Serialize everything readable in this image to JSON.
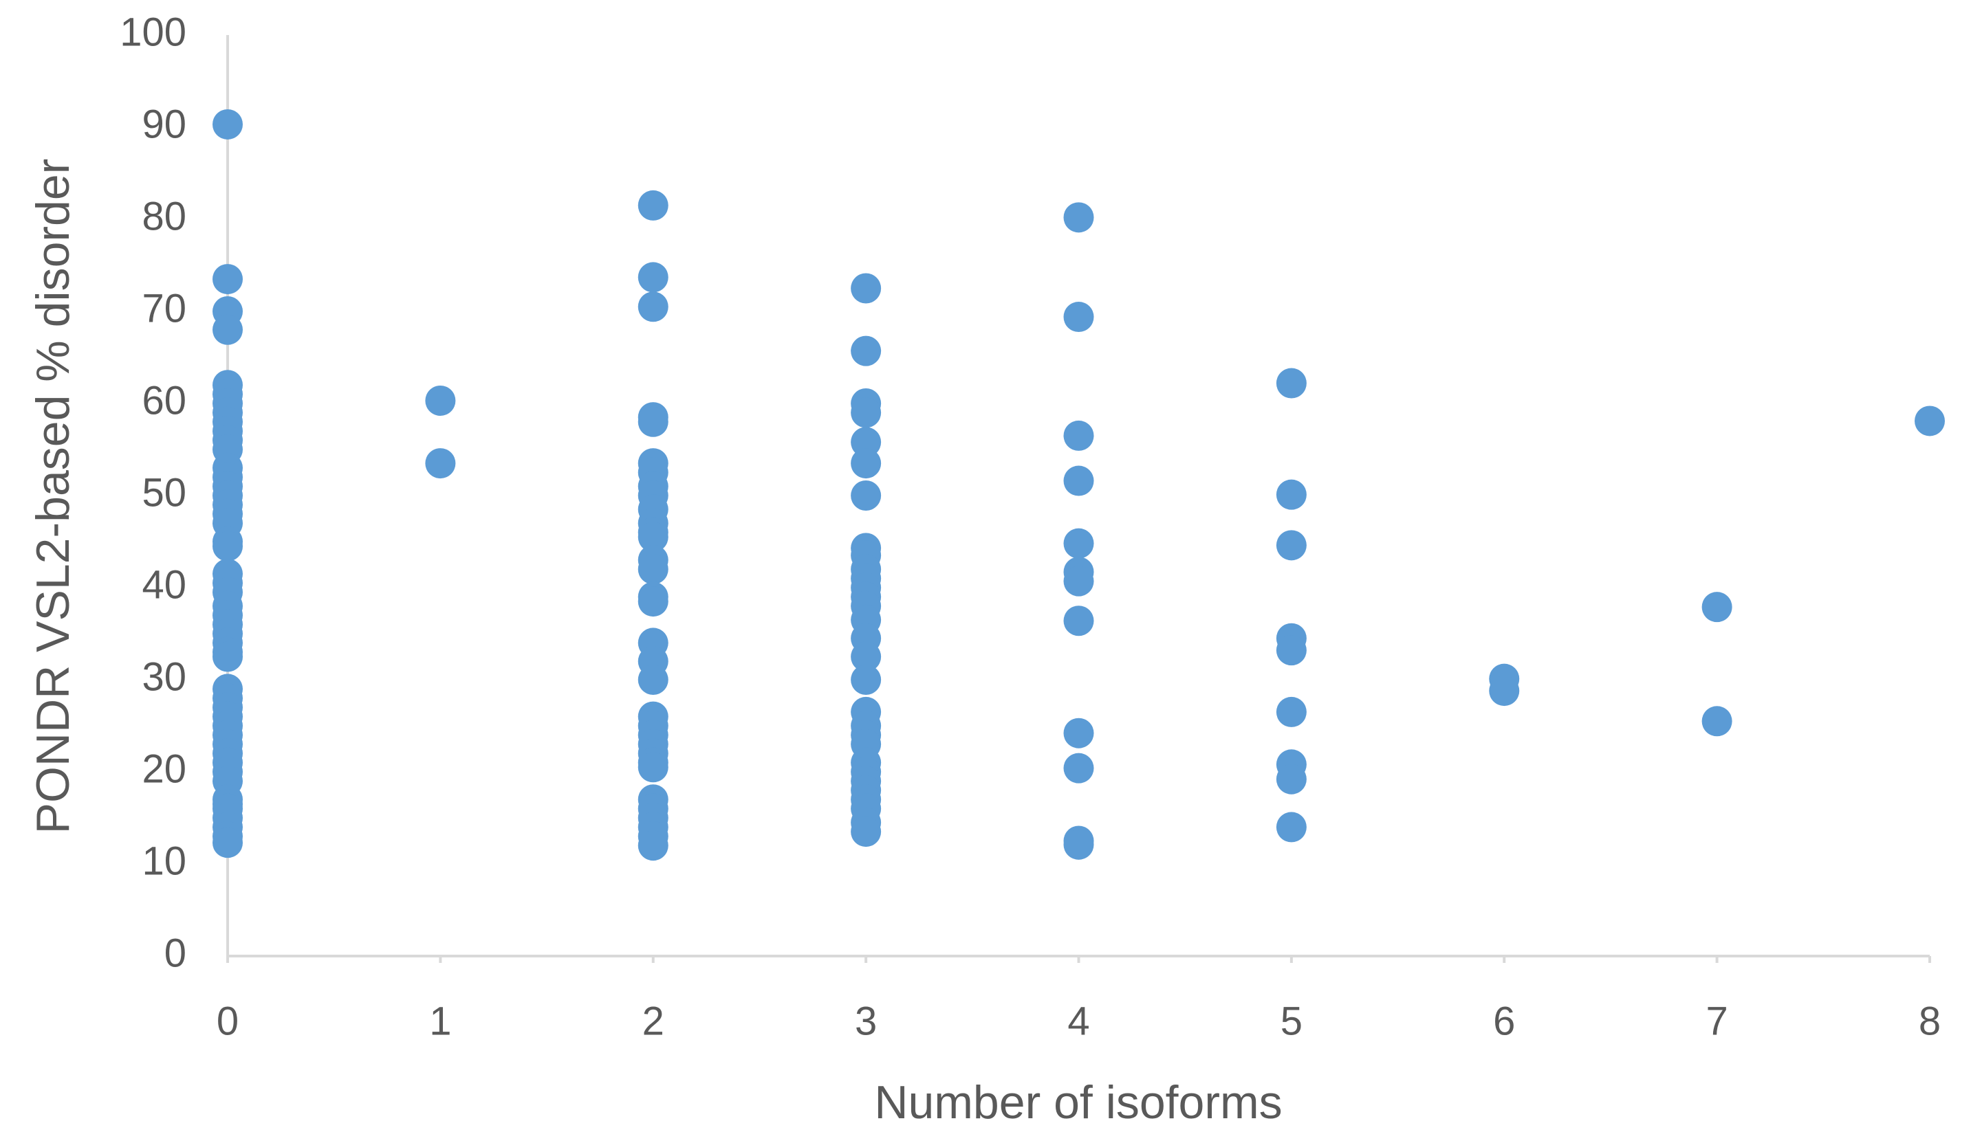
{
  "chart_data": {
    "type": "scatter",
    "x_label": "Number of isoforms",
    "y_label": "PONDR VSL2-based % disorder",
    "color": "#5b9bd5",
    "x": [
      0,
      0,
      0,
      0,
      0,
      0,
      0,
      0,
      0,
      0,
      0,
      0,
      0,
      0,
      0,
      0,
      0,
      0,
      0,
      0,
      0,
      0,
      0,
      0,
      0,
      0,
      0,
      0,
      0,
      0,
      0,
      0,
      0,
      0,
      0,
      0,
      0,
      0,
      0,
      0,
      0,
      0,
      0,
      0,
      0,
      0,
      0,
      0,
      0,
      1,
      1,
      2,
      2,
      2,
      2,
      2,
      2,
      2,
      2,
      2,
      2,
      2,
      2,
      2,
      2,
      2,
      2,
      2,
      2,
      2,
      2,
      2,
      2,
      2,
      2,
      2,
      2,
      2,
      2,
      2,
      2,
      2,
      2,
      2,
      3,
      3,
      3,
      3,
      3,
      3,
      3,
      3,
      3,
      3,
      3,
      3,
      3,
      3,
      3,
      3,
      3,
      3,
      3,
      3,
      3,
      3,
      3,
      3,
      3,
      3,
      3,
      3,
      3,
      3,
      4,
      4,
      4,
      4,
      4,
      4,
      4,
      4,
      4,
      4,
      4,
      4,
      5,
      5,
      5,
      5,
      5,
      5,
      5,
      5,
      5,
      6,
      6,
      7,
      7,
      8
    ],
    "values": [
      90.3,
      73.5,
      70,
      68,
      62,
      61,
      60,
      59,
      58,
      57,
      56,
      55,
      53,
      52,
      51,
      50,
      49,
      48,
      47,
      45,
      44.5,
      41.5,
      40.5,
      39.5,
      38,
      37,
      36,
      35,
      34,
      33,
      32.5,
      29,
      28,
      27,
      26,
      25,
      24,
      23,
      22,
      21,
      20,
      19,
      17,
      16.5,
      16,
      15,
      14,
      13,
      12.3,
      60.3,
      53.5,
      81.5,
      73.7,
      70.5,
      58.5,
      58,
      53.5,
      52.5,
      51,
      50,
      48.5,
      47,
      46,
      45.5,
      43,
      42,
      39,
      38.5,
      34,
      32,
      30,
      26,
      25,
      24,
      23,
      22,
      21,
      20.5,
      17,
      16,
      15,
      14,
      13,
      12,
      72.5,
      65.7,
      60,
      59,
      55.8,
      53.5,
      50,
      44.3,
      43.5,
      42,
      41,
      40,
      39,
      38,
      36.5,
      34.5,
      32.5,
      30,
      26.5,
      25,
      24,
      23,
      21,
      20,
      19,
      18,
      17,
      16,
      14.5,
      13.5,
      80.2,
      69.4,
      56.5,
      51.6,
      44.8,
      41.7,
      40.7,
      36.4,
      24.2,
      20.4,
      12.5,
      12.1,
      62.2,
      50.1,
      44.6,
      34.5,
      33.2,
      26.5,
      20.8,
      19.2,
      14.0,
      30.1,
      28.8,
      37.9,
      25.5,
      58.1
    ],
    "xlim": [
      0,
      8
    ],
    "xticks": [
      0,
      1,
      2,
      3,
      4,
      5,
      6,
      7,
      8
    ],
    "ylim": [
      0,
      100
    ],
    "yticks": [
      0,
      10,
      20,
      30,
      40,
      50,
      60,
      70,
      80,
      90,
      100
    ],
    "grid": false
  }
}
